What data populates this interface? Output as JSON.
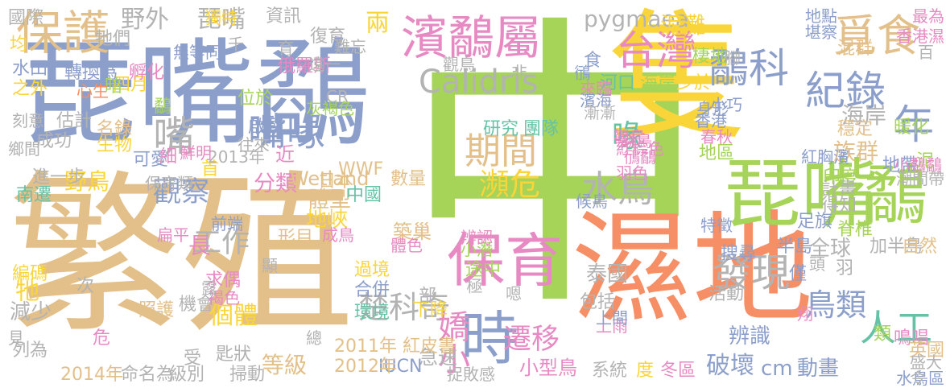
{
  "palette": {
    "sand": "#e3c08a",
    "blue": "#8c9fcb",
    "orange": "#f68e66",
    "green": "#a5d458",
    "yellow": "#fad53a",
    "pink": "#e78ac3",
    "teal": "#66c2a5",
    "gray": "#b3b3b3"
  },
  "words": [
    {
      "text": "中",
      "color": "#a5d458",
      "rank": 1
    },
    {
      "text": "繁殖",
      "color": "#e3c08a",
      "rank": 2
    },
    {
      "text": "隻",
      "color": "#fad53a",
      "rank": 3
    },
    {
      "text": "琵嘴鷸",
      "color": "#8c9fcb",
      "rank": 4
    },
    {
      "text": "濕地",
      "color": "#f68e66",
      "rank": 5
    },
    {
      "text": "琵嘴",
      "color": "#a5d458",
      "rank": 6
    },
    {
      "text": "鷸",
      "color": "#a5d458",
      "rank": 7
    },
    {
      "text": "保育",
      "color": "#e78ac3",
      "rank": 8
    },
    {
      "text": "時",
      "color": "#8c9fcb",
      "rank": 9
    },
    {
      "text": "濱鷸屬",
      "color": "#e78ac3",
      "rank": 10
    },
    {
      "text": "保護",
      "color": "#e3c08a",
      "rank": 11
    },
    {
      "text": "台灣",
      "color": "#e78ac3",
      "rank": 12
    },
    {
      "text": "Calidris",
      "color": "#b3b3b3",
      "rank": 13
    },
    {
      "text": "水鳥",
      "color": "#b3b3b3",
      "rank": 14
    },
    {
      "text": "嘴",
      "color": "#b3b3b3",
      "rank": 15
    },
    {
      "text": "嘴喙",
      "color": "#8c9fcb",
      "rank": 16
    },
    {
      "text": "鷸科",
      "color": "#8c9fcb",
      "rank": 17
    },
    {
      "text": "紀錄",
      "color": "#8c9fcb",
      "rank": 18
    },
    {
      "text": "年",
      "color": "#8c9fcb",
      "rank": 19
    },
    {
      "text": "覓食",
      "color": "#e3c08a",
      "rank": 20
    },
    {
      "text": "期間",
      "color": "#e3c08a",
      "rank": 21
    },
    {
      "text": "瀕危",
      "color": "#fad53a",
      "rank": 22
    },
    {
      "text": "喙",
      "color": "#66c2a5",
      "rank": 23
    },
    {
      "text": "發現",
      "color": "#b3b3b3",
      "rank": 24
    },
    {
      "text": "鳥類",
      "color": "#8c9fcb",
      "rank": 25
    },
    {
      "text": "人工",
      "color": "#66c2a5",
      "rank": 26
    },
    {
      "text": "楚科奇",
      "color": "#b3b3b3",
      "rank": 27
    },
    {
      "text": "遷移",
      "color": "#e78ac3",
      "rank": 28
    },
    {
      "text": "嬌小",
      "color": "#e78ac3",
      "rank": 29
    },
    {
      "text": "觀察",
      "color": "#8c9fcb",
      "rank": 30
    },
    {
      "text": "工作",
      "color": "#b3b3b3",
      "rank": 31
    },
    {
      "text": "個體",
      "color": "#fad53a",
      "rank": 32
    },
    {
      "text": "琵嘴",
      "color": "#b3b3b3",
      "rank": 33
    },
    {
      "text": "野外",
      "color": "#b3b3b3",
      "rank": 34
    },
    {
      "text": "兩",
      "color": "#fad53a",
      "rank": 35
    },
    {
      "text": "pygmaea",
      "color": "#b3b3b3",
      "rank": 36
    },
    {
      "text": "泥灘",
      "color": "#fad53a",
      "rank": 37
    },
    {
      "text": "河口",
      "color": "#66c2a5",
      "rank": 38
    },
    {
      "text": "海岸",
      "color": "#a5d458",
      "rank": 39
    },
    {
      "text": "少於",
      "color": "#fad53a",
      "rank": 40
    },
    {
      "text": "海岸",
      "color": "#b3b3b3",
      "rank": 41
    },
    {
      "text": "族群",
      "color": "#e3c08a",
      "rank": 42
    },
    {
      "text": "地區",
      "color": "#a5d458",
      "rank": 43
    },
    {
      "text": "研究",
      "color": "#66c2a5",
      "rank": 44
    },
    {
      "text": "團隊",
      "color": "#66c2a5",
      "rank": 45
    },
    {
      "text": "觀鳥",
      "color": "#e78ac3",
      "rank": 46
    },
    {
      "text": "分類",
      "color": "#e78ac3",
      "rank": 47
    },
    {
      "text": "體型",
      "color": "#e3c08a",
      "rank": 48
    },
    {
      "text": "中國",
      "color": "#66c2a5",
      "rank": 49
    },
    {
      "text": "野鳥",
      "color": "#fad53a",
      "rank": 50
    },
    {
      "text": "近",
      "color": "#e78ac3",
      "rank": 51
    },
    {
      "text": "急速",
      "color": "#b3b3b3",
      "rank": 52
    },
    {
      "text": "小型鳥",
      "color": "#e78ac3",
      "rank": 53
    },
    {
      "text": "破壞",
      "color": "#8c9fcb",
      "rank": 54
    },
    {
      "text": "cm",
      "color": "#8c9fcb",
      "rank": 55
    },
    {
      "text": "動畫",
      "color": "#8c9fcb",
      "rank": 56
    },
    {
      "text": "等級",
      "color": "#e3c08a",
      "rank": 57
    },
    {
      "text": "度",
      "color": "#fad53a",
      "rank": 58
    },
    {
      "text": "冬區",
      "color": "#e78ac3",
      "rank": 59
    },
    {
      "text": "全球",
      "color": "#b3b3b3",
      "rank": 60
    },
    {
      "text": "長",
      "color": "#e78ac3",
      "rank": 61
    },
    {
      "text": "牠",
      "color": "#fad53a",
      "rank": 62
    },
    {
      "text": "減少",
      "color": "#b3b3b3",
      "rank": 63
    },
    {
      "text": "地峽",
      "color": "#fad53a",
      "rank": 64
    },
    {
      "text": "築巢",
      "color": "#e3c08a",
      "rank": 65
    },
    {
      "text": "Wetland",
      "color": "#e3c08a",
      "rank": 66
    },
    {
      "text": "數量",
      "color": "#e3c08a",
      "rank": 67
    },
    {
      "text": "印度",
      "color": "#a5d458",
      "rank": 68
    },
    {
      "text": "地帶",
      "color": "#8c9fcb",
      "rank": 69
    },
    {
      "text": "暖化",
      "color": "#a5d458",
      "rank": 70
    },
    {
      "text": "小巧",
      "color": "#8c9fcb",
      "rank": 71
    },
    {
      "text": "香港",
      "color": "#8c9fcb",
      "rank": 72
    },
    {
      "text": "棲地",
      "color": "#a5d458",
      "rank": 73
    },
    {
      "text": "地點",
      "color": "#8c9fcb",
      "rank": 74
    },
    {
      "text": "堪察",
      "color": "#8c9fcb",
      "rank": 75
    },
    {
      "text": "混群",
      "color": "#e3c08a",
      "rank": 76
    },
    {
      "text": "泥",
      "color": "#a5d458",
      "rank": 77
    },
    {
      "text": "羽",
      "color": "#b3b3b3",
      "rank": 78
    },
    {
      "text": "半島",
      "color": "#8c9fcb",
      "rank": 79
    },
    {
      "text": "加半島",
      "color": "#b3b3b3",
      "rank": 80
    },
    {
      "text": "搜尋",
      "color": "#8c9fcb",
      "rank": 81
    },
    {
      "text": "自然",
      "color": "#e3c08a",
      "rank": 82
    },
    {
      "text": "僅",
      "color": "#8c9fcb",
      "rank": 83
    },
    {
      "text": "辨識",
      "color": "#8c9fcb",
      "rank": 84
    },
    {
      "text": "活動",
      "color": "#b3b3b3",
      "rank": 85
    },
    {
      "text": "包括",
      "color": "#b3b3b3",
      "rank": 86
    },
    {
      "text": "系統",
      "color": "#b3b3b3",
      "rank": 87
    },
    {
      "text": "泰國",
      "color": "#b3b3b3",
      "rank": 88
    },
    {
      "text": "IUCN",
      "color": "#8c9fcb",
      "rank": 89
    },
    {
      "text": "2012年",
      "color": "#e3c08a",
      "rank": 90
    },
    {
      "text": "2011年 紅皮書",
      "color": "#e3c08a",
      "rank": 91
    },
    {
      "text": "2014年",
      "color": "#e3c08a",
      "rank": 92
    },
    {
      "text": "命名為",
      "color": "#b3b3b3",
      "rank": 93
    },
    {
      "text": "級別",
      "color": "#b3b3b3",
      "rank": 94
    },
    {
      "text": "掃動",
      "color": "#b3b3b3",
      "rank": 95
    },
    {
      "text": "匙狀",
      "color": "#b3b3b3",
      "rank": 96
    },
    {
      "text": "受",
      "color": "#b3b3b3",
      "rank": 97
    },
    {
      "text": "機會",
      "color": "#b3b3b3",
      "rank": 98
    },
    {
      "text": "求偶",
      "color": "#e78ac3",
      "rank": 99
    },
    {
      "text": "過境",
      "color": "#fad53a",
      "rank": 100
    },
    {
      "text": "合併",
      "color": "#8c9fcb",
      "rank": 101
    },
    {
      "text": "環境",
      "color": "#66c2a5",
      "rank": 102
    },
    {
      "text": "下降",
      "color": "#fad53a",
      "rank": 103
    },
    {
      "text": "途中",
      "color": "#a5d458",
      "rank": 104
    },
    {
      "text": "部",
      "color": "#b3b3b3",
      "rank": 105
    },
    {
      "text": "照護",
      "color": "#e3c08a",
      "rank": 106
    },
    {
      "text": "次",
      "color": "#b3b3b3",
      "rank": 107
    },
    {
      "text": "形目",
      "color": "#e3c08a",
      "rank": 108
    },
    {
      "text": "進一步",
      "color": "#b3b3b3",
      "rank": 109
    },
    {
      "text": "南遷",
      "color": "#66c2a5",
      "rank": 110
    },
    {
      "text": "可愛",
      "color": "#8c9fcb",
      "rank": 111
    },
    {
      "text": "首",
      "color": "#fad53a",
      "rank": 112
    },
    {
      "text": "日本",
      "color": "#e3c08a",
      "rank": 113
    },
    {
      "text": "WWF",
      "color": "#e3c08a",
      "rank": 114
    },
    {
      "text": "2013年",
      "color": "#b3b3b3",
      "rank": 115
    },
    {
      "text": "生物",
      "color": "#fad53a",
      "rank": 116
    },
    {
      "text": "名錄",
      "color": "#e3c08a",
      "rank": 117
    },
    {
      "text": "估計",
      "color": "#b3b3b3",
      "rank": 118
    },
    {
      "text": "鷸",
      "color": "#a5d458",
      "rank": 119
    },
    {
      "text": "細",
      "color": "#e78ac3",
      "rank": 120
    },
    {
      "text": "成功",
      "color": "#b3b3b3",
      "rank": 121
    },
    {
      "text": "位於",
      "color": "#a5d458",
      "rank": 122
    },
    {
      "text": "啟動",
      "color": "#8c9fcb",
      "rank": 123
    },
    {
      "text": "四月",
      "color": "#fad53a",
      "rank": 124
    },
    {
      "text": "孵化",
      "color": "#e78ac3",
      "rank": 125
    },
    {
      "text": "國際",
      "color": "#b3b3b3",
      "rank": 126
    },
    {
      "text": "均",
      "color": "#fad53a",
      "rank": 127
    },
    {
      "text": "牠們",
      "color": "#b3b3b3",
      "rank": 128
    },
    {
      "text": "水田",
      "color": "#8c9fcb",
      "rank": 129
    },
    {
      "text": "轉換為",
      "color": "#8c9fcb",
      "rank": 130
    },
    {
      "text": "之外",
      "color": "#fad53a",
      "rank": 131
    },
    {
      "text": "暗",
      "color": "#a5d458",
      "rank": 132
    },
    {
      "text": "資訊",
      "color": "#b3b3b3",
      "rank": 133
    },
    {
      "text": "復育",
      "color": "#b3b3b3",
      "rank": 134
    },
    {
      "text": "俄羅斯",
      "color": "#e78ac3",
      "rank": 135
    },
    {
      "text": "食",
      "color": "#8c9fcb",
      "rank": 136
    },
    {
      "text": "鴴",
      "color": "#8c9fcb",
      "rank": 137
    },
    {
      "text": "編碼",
      "color": "#fad53a",
      "rank": 138
    },
    {
      "text": "列為",
      "color": "#b3b3b3",
      "rank": 139
    },
    {
      "text": "危",
      "color": "#e78ac3",
      "rank": 140
    },
    {
      "text": "穩定",
      "color": "#e3c08a",
      "rank": 141
    },
    {
      "text": "計畫",
      "color": "#b3b3b3",
      "rank": 142
    },
    {
      "text": "得知",
      "color": "#b3b3b3",
      "rank": 143
    },
    {
      "text": "脊椎",
      "color": "#a5d458",
      "rank": 144
    },
    {
      "text": "足旗",
      "color": "#8c9fcb",
      "rank": 145
    },
    {
      "text": "鳴唱",
      "color": "#e78ac3",
      "rank": 146
    },
    {
      "text": "類",
      "color": "#a5d458",
      "rank": 147
    },
    {
      "text": "英國",
      "color": "#e3c08a",
      "rank": 148
    },
    {
      "text": "水鳥區",
      "color": "#8c9fcb",
      "rank": 149
    },
    {
      "text": "最為",
      "color": "#e78ac3",
      "rank": 150
    },
    {
      "text": "香港濕",
      "color": "#e78ac3",
      "rank": 151
    },
    {
      "text": "潮間帶",
      "color": "#b3b3b3",
      "rank": 152
    },
    {
      "text": "紅胸濱",
      "color": "#8c9fcb",
      "rank": 153
    },
    {
      "text": "小鷸鷸",
      "color": "#e78ac3",
      "rank": 154
    },
    {
      "text": "身形",
      "color": "#8c9fcb",
      "rank": 155
    },
    {
      "text": "春秋",
      "color": "#e78ac3",
      "rank": 156
    },
    {
      "text": "CR",
      "color": "#b3b3b3",
      "rank": 157
    },
    {
      "text": "灰褐色",
      "color": "#a5d458",
      "rank": 158
    },
    {
      "text": "往來",
      "color": "#b3b3b3",
      "rank": 159
    },
    {
      "text": "鮮明",
      "color": "#e78ac3",
      "rank": 160
    },
    {
      "text": "保育類",
      "color": "#b3b3b3",
      "rank": 161
    },
    {
      "text": "前端",
      "color": "#8c9fcb",
      "rank": 162
    },
    {
      "text": "扁平",
      "color": "#e78ac3",
      "rank": 163
    },
    {
      "text": "獨特",
      "color": "#fad53a",
      "rank": 164
    },
    {
      "text": "無等同",
      "color": "#8c9fcb",
      "rank": 165
    },
    {
      "text": "心生",
      "color": "#f68e66",
      "rank": 166
    },
    {
      "text": "刻意",
      "color": "#b3b3b3",
      "rank": 167
    },
    {
      "text": "鄉間",
      "color": "#b3b3b3",
      "rank": 168
    },
    {
      "text": "見",
      "color": "#b3b3b3",
      "rank": 169
    },
    {
      "text": "成鳥",
      "color": "#e78ac3",
      "rank": 170
    },
    {
      "text": "小潛",
      "color": "#a5d458",
      "rank": 171
    },
    {
      "text": "辨認",
      "color": "#e78ac3",
      "rank": 172
    },
    {
      "text": "候鳥",
      "color": "#8c9fcb",
      "rank": 173
    },
    {
      "text": "極",
      "color": "#b3b3b3",
      "rank": 174
    },
    {
      "text": "上雨",
      "color": "#e78ac3",
      "rank": 175
    },
    {
      "text": "特徵",
      "color": "#8c9fcb",
      "rank": 176
    },
    {
      "text": "紅棕色",
      "color": "#e78ac3",
      "rank": 177
    },
    {
      "text": "羽色",
      "color": "#e78ac3",
      "rank": 178
    },
    {
      "text": "鴴鷸",
      "color": "#e78ac3",
      "rank": 179
    },
    {
      "text": "觀鳥",
      "color": "#e78ac3",
      "rank": 180
    },
    {
      "text": "來臨",
      "color": "#e78ac3",
      "rank": 181
    },
    {
      "text": "濱海",
      "color": "#8c9fcb",
      "rank": 182
    },
    {
      "text": "漸漸",
      "color": "#b3b3b3",
      "rank": 183
    },
    {
      "text": "千",
      "color": "#b3b3b3",
      "rank": 184
    },
    {
      "text": "育",
      "color": "#b3b3b3",
      "rank": 185
    },
    {
      "text": "遠一",
      "color": "#b3b3b3",
      "rank": 186
    },
    {
      "text": "難忘",
      "color": "#b3b3b3",
      "rank": 187
    },
    {
      "text": "觀鳥",
      "color": "#b3b3b3",
      "rank": 188
    },
    {
      "text": "非",
      "color": "#b3b3b3",
      "rank": 189
    },
    {
      "text": "腳",
      "color": "#b3b3b3",
      "rank": 190
    },
    {
      "text": "盛大",
      "color": "#b3b3b3",
      "rank": 191
    },
    {
      "text": "令",
      "color": "#b3b3b3",
      "rank": 192
    },
    {
      "text": "頭",
      "color": "#b3b3b3",
      "rank": 193
    },
    {
      "text": "嗯",
      "color": "#b3b3b3",
      "rank": 194
    },
    {
      "text": "上間",
      "color": "#8c9fcb",
      "rank": 195
    },
    {
      "text": "百",
      "color": "#b3b3b3",
      "rank": 196
    },
    {
      "text": "捉敗感",
      "color": "#b3b3b3",
      "rank": 197
    },
    {
      "text": "總",
      "color": "#b3b3b3",
      "rank": 198
    },
    {
      "text": "褐色",
      "color": "#e78ac3",
      "rank": 199
    },
    {
      "text": "顯",
      "color": "#b3b3b3",
      "rank": 200
    },
    {
      "text": "體色",
      "color": "#e78ac3",
      "rank": 201
    },
    {
      "text": "露",
      "color": "#b3b3b3",
      "rank": 202
    },
    {
      "text": "翔",
      "color": "#e78ac3",
      "rank": 203
    }
  ]
}
